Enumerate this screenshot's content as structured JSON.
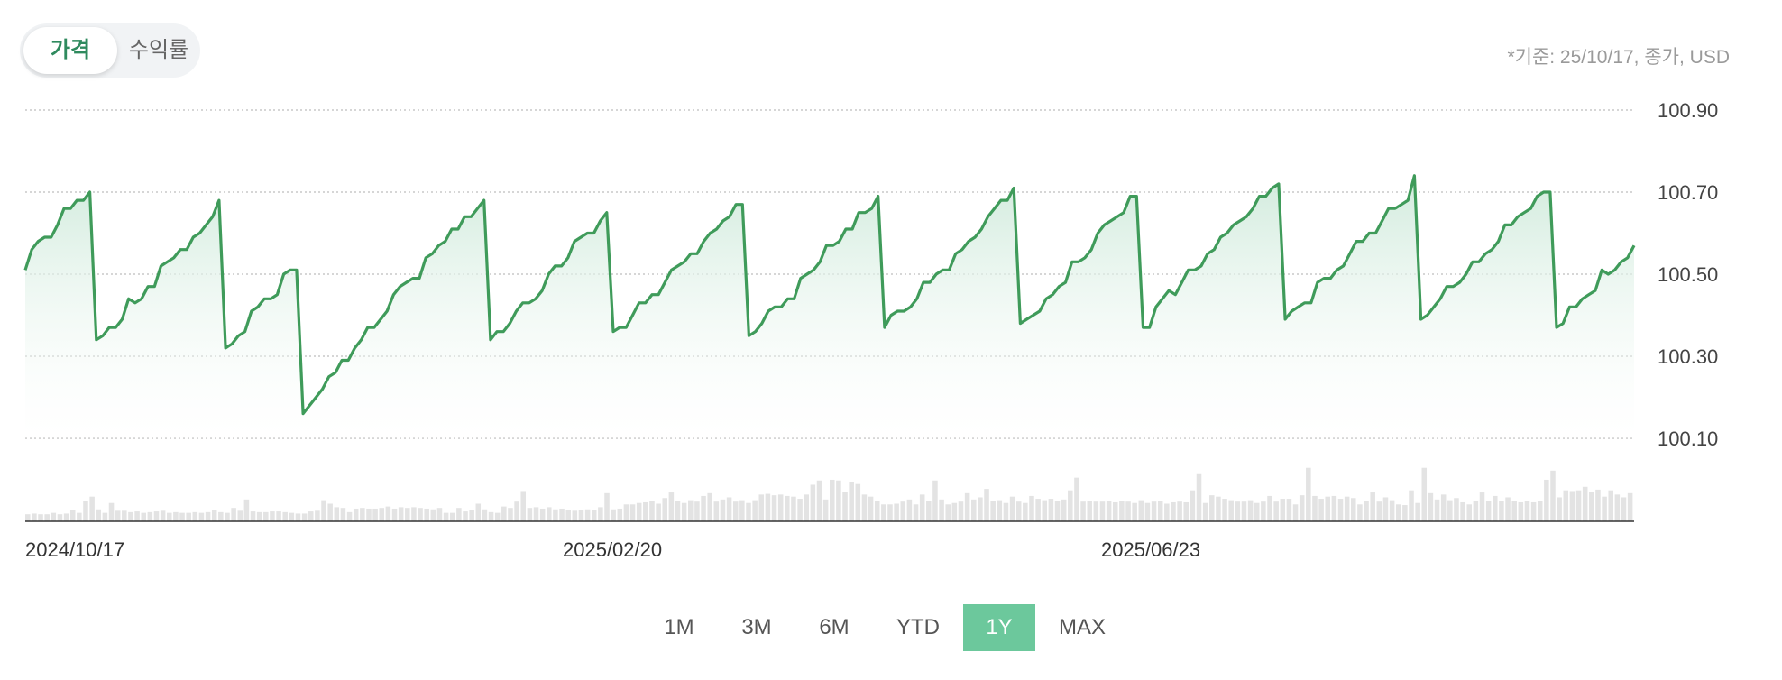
{
  "toggle": {
    "price_label": "가격",
    "return_label": "수익률",
    "active": "price"
  },
  "basis_note": "*기준: 25/10/17, 종가, USD",
  "range_buttons": [
    "1M",
    "3M",
    "6M",
    "YTD",
    "1Y",
    "MAX"
  ],
  "active_range": "1Y",
  "colors": {
    "line": "#3f9b5a",
    "fill": "#d7eedf",
    "volume": "#e3e3e3",
    "grid": "#c8c8c8",
    "accent": "#6cc89c"
  },
  "chart_data": {
    "type": "area",
    "title": "",
    "xlabel": "",
    "ylabel": "",
    "ylim": [
      100.1,
      100.9
    ],
    "yticks": [
      100.9,
      100.7,
      100.5,
      100.3,
      100.1
    ],
    "ytick_labels": [
      "100.90",
      "100.70",
      "100.50",
      "100.30",
      "100.10"
    ],
    "xtick_labels": [
      "2024/10/17",
      "2025/02/20",
      "2025/06/23"
    ],
    "grid": true,
    "series": [
      {
        "values": [
          100.51,
          100.56,
          100.58,
          100.59,
          100.59,
          100.62,
          100.66,
          100.66,
          100.68,
          100.68,
          100.7,
          100.34,
          100.35,
          100.37,
          100.37,
          100.39,
          100.44,
          100.43,
          100.44,
          100.47,
          100.47,
          100.52,
          100.53,
          100.54,
          100.56,
          100.56,
          100.59,
          100.6,
          100.62,
          100.64,
          100.68,
          100.32,
          100.33,
          100.35,
          100.36,
          100.41,
          100.42,
          100.44,
          100.44,
          100.45,
          100.5,
          100.51,
          100.51,
          100.16,
          100.18,
          100.2,
          100.22,
          100.25,
          100.26,
          100.29,
          100.29,
          100.32,
          100.34,
          100.37,
          100.37,
          100.39,
          100.41,
          100.45,
          100.47,
          100.48,
          100.49,
          100.49,
          100.54,
          100.55,
          100.57,
          100.58,
          100.61,
          100.61,
          100.64,
          100.64,
          100.66,
          100.68,
          100.34,
          100.36,
          100.36,
          100.38,
          100.41,
          100.43,
          100.43,
          100.44,
          100.46,
          100.5,
          100.52,
          100.52,
          100.54,
          100.58,
          100.59,
          100.6,
          100.6,
          100.63,
          100.65,
          100.36,
          100.37,
          100.37,
          100.4,
          100.43,
          100.43,
          100.45,
          100.45,
          100.48,
          100.51,
          100.52,
          100.53,
          100.55,
          100.55,
          100.58,
          100.6,
          100.61,
          100.63,
          100.64,
          100.67,
          100.67,
          100.35,
          100.36,
          100.38,
          100.41,
          100.42,
          100.42,
          100.44,
          100.44,
          100.49,
          100.5,
          100.51,
          100.53,
          100.57,
          100.57,
          100.58,
          100.61,
          100.61,
          100.65,
          100.65,
          100.66,
          100.69,
          100.37,
          100.4,
          100.41,
          100.41,
          100.42,
          100.44,
          100.48,
          100.48,
          100.5,
          100.51,
          100.51,
          100.55,
          100.56,
          100.58,
          100.59,
          100.61,
          100.64,
          100.66,
          100.68,
          100.68,
          100.71,
          100.38,
          100.39,
          100.4,
          100.41,
          100.44,
          100.45,
          100.47,
          100.48,
          100.53,
          100.53,
          100.54,
          100.56,
          100.6,
          100.62,
          100.63,
          100.64,
          100.65,
          100.69,
          100.69,
          100.37,
          100.37,
          100.42,
          100.44,
          100.46,
          100.45,
          100.48,
          100.51,
          100.51,
          100.52,
          100.55,
          100.56,
          100.59,
          100.6,
          100.62,
          100.63,
          100.64,
          100.66,
          100.69,
          100.69,
          100.71,
          100.72,
          100.39,
          100.41,
          100.42,
          100.43,
          100.43,
          100.48,
          100.49,
          100.49,
          100.51,
          100.52,
          100.55,
          100.58,
          100.58,
          100.6,
          100.6,
          100.63,
          100.66,
          100.66,
          100.67,
          100.68,
          100.74,
          100.39,
          100.4,
          100.42,
          100.44,
          100.47,
          100.47,
          100.48,
          100.5,
          100.53,
          100.53,
          100.55,
          100.56,
          100.58,
          100.62,
          100.62,
          100.64,
          100.65,
          100.66,
          100.69,
          100.7,
          100.7,
          100.37,
          100.38,
          100.42,
          100.42,
          100.44,
          100.45,
          100.46,
          100.51,
          100.5,
          100.51,
          100.53,
          100.54,
          100.57
        ]
      }
    ],
    "volume": [
      0.1,
      0.11,
      0.1,
      0.1,
      0.12,
      0.1,
      0.11,
      0.16,
      0.12,
      0.29,
      0.35,
      0.17,
      0.12,
      0.26,
      0.15,
      0.15,
      0.13,
      0.14,
      0.12,
      0.13,
      0.14,
      0.15,
      0.12,
      0.13,
      0.12,
      0.12,
      0.13,
      0.12,
      0.13,
      0.16,
      0.13,
      0.12,
      0.19,
      0.15,
      0.31,
      0.14,
      0.13,
      0.13,
      0.14,
      0.14,
      0.13,
      0.12,
      0.11,
      0.11,
      0.14,
      0.15,
      0.3,
      0.25,
      0.2,
      0.19,
      0.13,
      0.18,
      0.19,
      0.18,
      0.18,
      0.19,
      0.21,
      0.18,
      0.2,
      0.19,
      0.2,
      0.19,
      0.18,
      0.17,
      0.19,
      0.12,
      0.12,
      0.19,
      0.14,
      0.16,
      0.25,
      0.17,
      0.13,
      0.12,
      0.21,
      0.19,
      0.28,
      0.43,
      0.19,
      0.2,
      0.18,
      0.2,
      0.17,
      0.18,
      0.16,
      0.15,
      0.16,
      0.17,
      0.16,
      0.2,
      0.4,
      0.17,
      0.18,
      0.24,
      0.24,
      0.26,
      0.27,
      0.29,
      0.25,
      0.33,
      0.41,
      0.29,
      0.26,
      0.3,
      0.28,
      0.36,
      0.4,
      0.28,
      0.31,
      0.34,
      0.28,
      0.3,
      0.26,
      0.3,
      0.38,
      0.39,
      0.37,
      0.38,
      0.36,
      0.35,
      0.32,
      0.38,
      0.52,
      0.58,
      0.31,
      0.59,
      0.58,
      0.42,
      0.56,
      0.53,
      0.38,
      0.35,
      0.29,
      0.24,
      0.24,
      0.25,
      0.28,
      0.31,
      0.24,
      0.38,
      0.29,
      0.58,
      0.31,
      0.24,
      0.26,
      0.28,
      0.4,
      0.31,
      0.34,
      0.46,
      0.29,
      0.3,
      0.26,
      0.35,
      0.28,
      0.26,
      0.36,
      0.32,
      0.3,
      0.32,
      0.29,
      0.31,
      0.44,
      0.62,
      0.28,
      0.29,
      0.28,
      0.28,
      0.29,
      0.27,
      0.29,
      0.28,
      0.26,
      0.3,
      0.26,
      0.28,
      0.29,
      0.25,
      0.27,
      0.28,
      0.27,
      0.44,
      0.67,
      0.26,
      0.37,
      0.35,
      0.32,
      0.3,
      0.28,
      0.28,
      0.3,
      0.26,
      0.28,
      0.36,
      0.28,
      0.32,
      0.32,
      0.24,
      0.37,
      0.76,
      0.36,
      0.32,
      0.35,
      0.36,
      0.32,
      0.35,
      0.33,
      0.24,
      0.29,
      0.41,
      0.28,
      0.34,
      0.3,
      0.24,
      0.23,
      0.44,
      0.26,
      0.76,
      0.4,
      0.31,
      0.38,
      0.3,
      0.33,
      0.27,
      0.24,
      0.29,
      0.41,
      0.29,
      0.36,
      0.29,
      0.34,
      0.29,
      0.27,
      0.29,
      0.27,
      0.29,
      0.59,
      0.72,
      0.34,
      0.44,
      0.43,
      0.44,
      0.49,
      0.42,
      0.45,
      0.35,
      0.44,
      0.38,
      0.34,
      0.4
    ]
  }
}
